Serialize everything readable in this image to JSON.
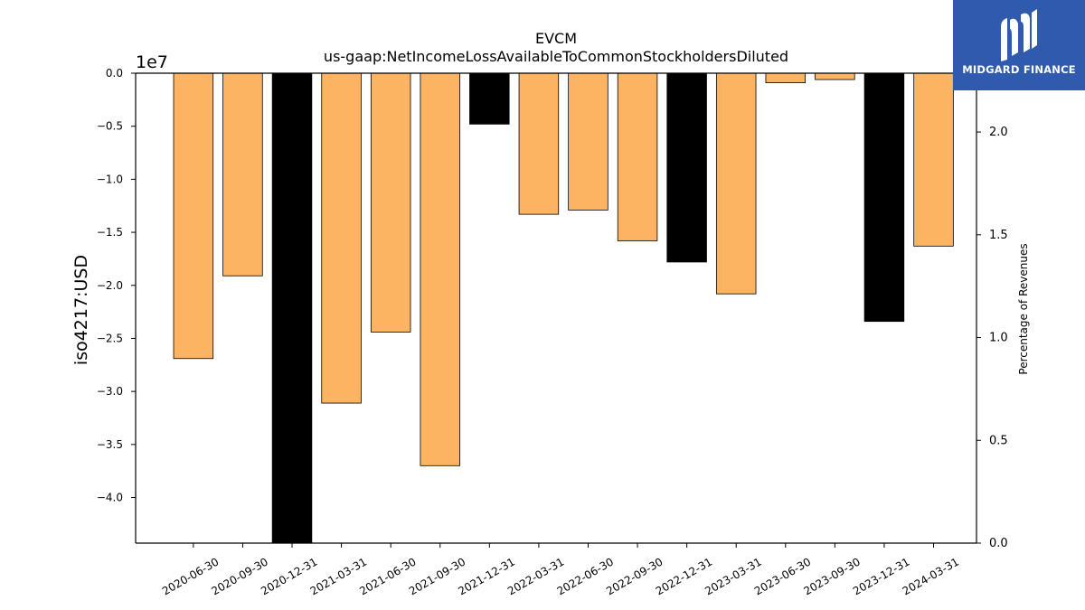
{
  "chart_data": {
    "type": "bar",
    "title": "EVCM",
    "subtitle": "us-gaap:NetIncomeLossAvailableToCommonStockholdersDiluted",
    "ylabel": "iso4217:USD",
    "y_offset_label": "1e7",
    "y2label": "Percentage of Revenues",
    "ylim": [
      -44300000,
      0
    ],
    "y2lim": [
      0,
      2.2861
    ],
    "yticks": [
      "0.0",
      "−0.5",
      "−1.0",
      "−1.5",
      "−2.0",
      "−2.5",
      "−3.0",
      "−3.5",
      "−4.0"
    ],
    "y2ticks": [
      "0.0",
      "0.5",
      "1.0",
      "1.5",
      "2.0"
    ],
    "categories": [
      "2020-06-30",
      "2020-09-30",
      "2020-12-31",
      "2021-03-31",
      "2021-06-30",
      "2021-09-30",
      "2021-12-31",
      "2022-03-31",
      "2022-06-30",
      "2022-09-30",
      "2022-12-31",
      "2023-03-31",
      "2023-06-30",
      "2023-09-30",
      "2023-12-31",
      "2024-03-31"
    ],
    "values": [
      -26900000,
      -19100000,
      -44300000,
      -31100000,
      -24400000,
      -37000000,
      -4800000,
      -13300000,
      -12900000,
      -15800000,
      -17800000,
      -20800000,
      -900000,
      -600000,
      -23400000,
      -16300000
    ],
    "bar_colors": [
      "#fdb462",
      "#fdb462",
      "#000000",
      "#fdb462",
      "#fdb462",
      "#fdb462",
      "#000000",
      "#fdb462",
      "#fdb462",
      "#fdb462",
      "#000000",
      "#fdb462",
      "#fdb462",
      "#fdb462",
      "#000000",
      "#fdb462"
    ],
    "grid": false
  },
  "logo": {
    "text": "MIDGARD FINANCE",
    "color": "#2f5aad"
  }
}
